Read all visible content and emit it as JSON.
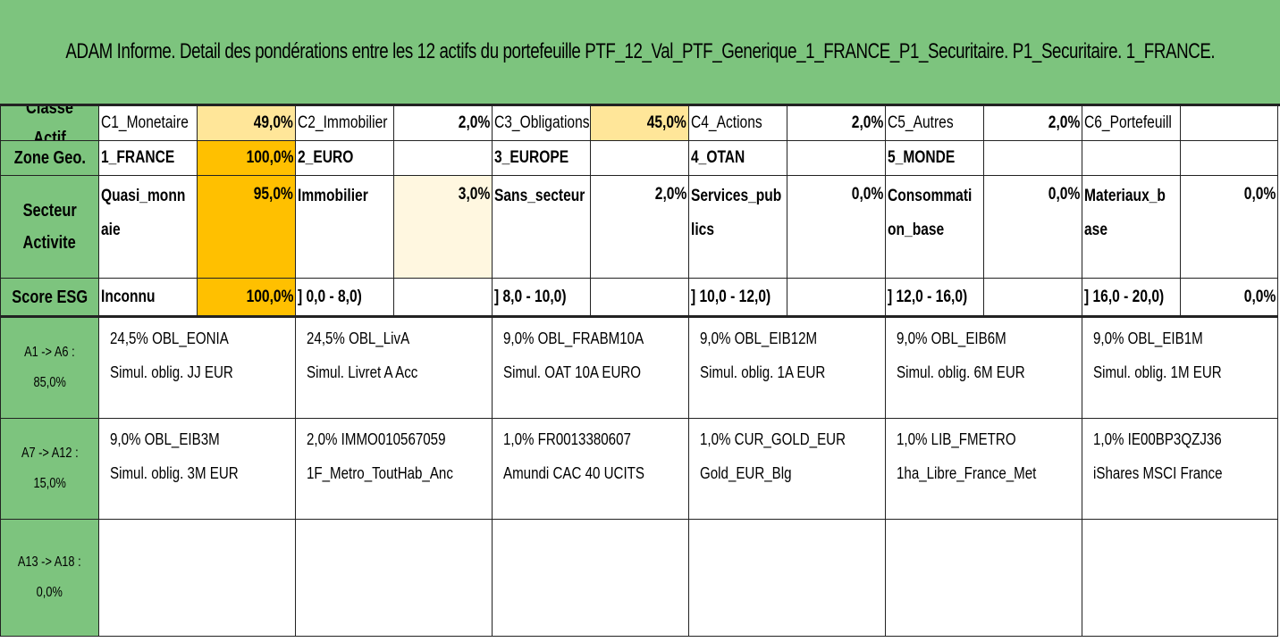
{
  "title": "ADAM Informe. Detail des pondérations entre les 12 actifs du portefeuille PTF_12_Val_PTF_Generique_1_FRANCE_P1_Securitaire. P1_Securitaire. 1_FRANCE.",
  "colors": {
    "green": "#7dc47e",
    "orange_strong": "#ffc000",
    "orange_light": "#ffe699",
    "orange_pale": "#fff7e0"
  },
  "classe": {
    "header": "Classe Actif",
    "items": [
      {
        "label": "C1_Monetaire",
        "value": "49,0%"
      },
      {
        "label": "C2_Immobilier",
        "value": "2,0%"
      },
      {
        "label": "C3_Obligations",
        "value": "45,0%"
      },
      {
        "label": "C4_Actions",
        "value": "2,0%"
      },
      {
        "label": "C5_Autres",
        "value": "2,0%"
      },
      {
        "label": "C6_Portefeuill",
        "value": ""
      }
    ]
  },
  "zone": {
    "header": "Zone Geo.",
    "items": [
      {
        "label": "1_FRANCE",
        "value": "100,0%"
      },
      {
        "label": "2_EURO",
        "value": ""
      },
      {
        "label": "3_EUROPE",
        "value": ""
      },
      {
        "label": "4_OTAN",
        "value": ""
      },
      {
        "label": "5_MONDE",
        "value": ""
      },
      {
        "label": "",
        "value": ""
      }
    ]
  },
  "secteur": {
    "header_line1": "Secteur",
    "header_line2": "Activite",
    "items": [
      {
        "label1": "Quasi_monn",
        "label2": "aie",
        "value": "95,0%"
      },
      {
        "label1": "Immobilier",
        "label2": "",
        "value": "3,0%"
      },
      {
        "label1": "Sans_secteur",
        "label2": "",
        "value": "2,0%"
      },
      {
        "label1": "Services_pub",
        "label2": "lics",
        "value": "0,0%"
      },
      {
        "label1": "Consommati",
        "label2": "on_base",
        "value": "0,0%"
      },
      {
        "label1": "Materiaux_b",
        "label2": "ase",
        "value": "0,0%"
      }
    ]
  },
  "esg": {
    "header": "Score ESG",
    "items": [
      {
        "label": "Inconnu",
        "value": "100,0%"
      },
      {
        "label": "] 0,0 - 8,0)",
        "value": ""
      },
      {
        "label": "] 8,0 - 10,0)",
        "value": ""
      },
      {
        "label": "] 10,0 - 12,0)",
        "value": ""
      },
      {
        "label": "] 12,0 - 16,0)",
        "value": ""
      },
      {
        "label": "] 16,0 - 20,0)",
        "value": "0,0%"
      }
    ]
  },
  "assets": [
    {
      "header_line1": "A1 -> A6 :",
      "header_line2": "85,0%",
      "items": [
        {
          "line1": "24,5% OBL_EONIA",
          "line2": "Simul. oblig. JJ EUR"
        },
        {
          "line1": "24,5% OBL_LivA",
          "line2": "Simul. Livret A Acc"
        },
        {
          "line1": "9,0% OBL_FRABM10A",
          "line2": "Simul. OAT 10A EURO"
        },
        {
          "line1": "9,0% OBL_EIB12M",
          "line2": "Simul. oblig. 1A EUR"
        },
        {
          "line1": "9,0% OBL_EIB6M",
          "line2": "Simul. oblig. 6M EUR"
        },
        {
          "line1": "9,0% OBL_EIB1M",
          "line2": "Simul. oblig. 1M EUR"
        }
      ]
    },
    {
      "header_line1": "A7 -> A12 :",
      "header_line2": "15,0%",
      "items": [
        {
          "line1": "9,0% OBL_EIB3M",
          "line2": "Simul. oblig. 3M EUR"
        },
        {
          "line1": "2,0% IMMO010567059",
          "line2": "1F_Metro_ToutHab_Anc"
        },
        {
          "line1": "1,0% FR0013380607",
          "line2": "Amundi CAC 40 UCITS"
        },
        {
          "line1": "1,0% CUR_GOLD_EUR",
          "line2": "Gold_EUR_Blg"
        },
        {
          "line1": "1,0% LIB_FMETRO",
          "line2": "1ha_Libre_France_Met"
        },
        {
          "line1": "1,0% IE00BP3QZJ36",
          "line2": "iShares MSCI France"
        }
      ]
    },
    {
      "header_line1": "A13 -> A18 :",
      "header_line2": "0,0%",
      "items": [
        {
          "line1": "",
          "line2": ""
        },
        {
          "line1": "",
          "line2": ""
        },
        {
          "line1": "",
          "line2": ""
        },
        {
          "line1": "",
          "line2": ""
        },
        {
          "line1": "",
          "line2": ""
        },
        {
          "line1": "",
          "line2": ""
        }
      ]
    }
  ]
}
